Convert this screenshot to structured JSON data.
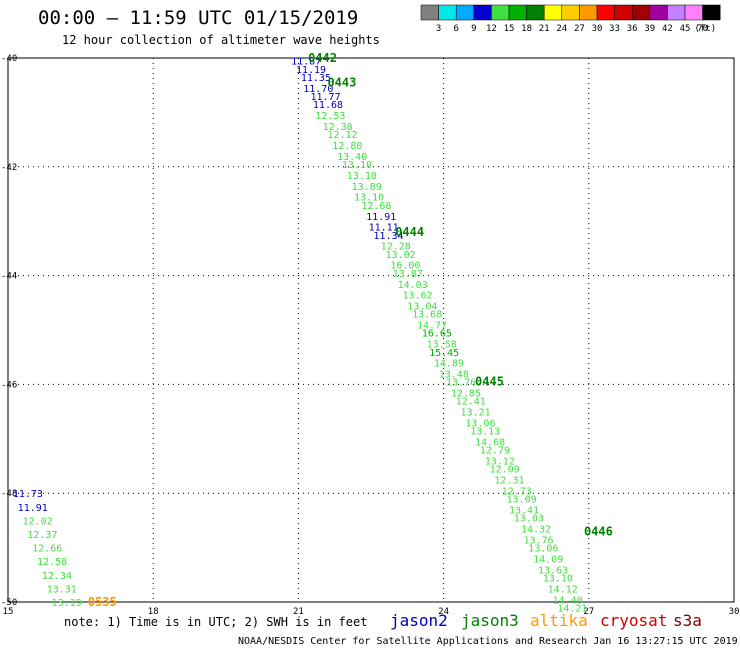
{
  "title": "00:00 – 11:59 UTC 01/15/2019",
  "subtitle": "12 hour collection of altimeter wave heights",
  "note": "note: 1) Time is in UTC; 2) SWH is in feet",
  "footer": "NOAA/NESDIS Center for Satellite Applications and Research   Jan 16 13:27:15 UTC 2019",
  "colorbar": {
    "colors": [
      "#808080",
      "#00e8e8",
      "#00aaff",
      "#0000d0",
      "#40e040",
      "#00b000",
      "#008000",
      "#ffff00",
      "#ffcc00",
      "#ff9900",
      "#ff0000",
      "#d00000",
      "#a00000",
      "#a000a0",
      "#c080ff",
      "#ff80ff",
      "#000000"
    ],
    "labels": [
      "3",
      "6",
      "9",
      "12",
      "15",
      "18",
      "21",
      "24",
      "27",
      "30",
      "33",
      "36",
      "39",
      "42",
      "45",
      "70"
    ],
    "unit": "(ft)"
  },
  "satellites": [
    {
      "name": "jason2",
      "color": "#0000c0"
    },
    {
      "name": "jason3",
      "color": "#008000"
    },
    {
      "name": "altika",
      "color": "#ff9900"
    },
    {
      "name": "cryosat",
      "color": "#d00000"
    },
    {
      "name": "s3a",
      "color": "#800000"
    }
  ],
  "chart_data": {
    "type": "scatter",
    "title": "00:00 – 11:59 UTC 01/15/2019",
    "subtitle": "12 hour collection of altimeter wave heights",
    "x_ticks": [
      "15",
      "18",
      "21",
      "24",
      "27",
      "30"
    ],
    "y_ticks": [
      "-40",
      "-42",
      "-44",
      "-46",
      "-48",
      "-50"
    ],
    "xlim": [
      15,
      30
    ],
    "ylim": [
      -50,
      -40
    ],
    "grid": true,
    "points": [
      {
        "x": 20.85,
        "y": -40.05,
        "v": "11.87",
        "c": "#0000c0"
      },
      {
        "x": 20.95,
        "y": -40.2,
        "v": "11.19",
        "c": "#0000c0"
      },
      {
        "x": 21.05,
        "y": -40.35,
        "v": "11.35",
        "c": "#0000c0"
      },
      {
        "x": 21.1,
        "y": -40.55,
        "v": "11.70",
        "c": "#0000c0"
      },
      {
        "x": 21.25,
        "y": -40.7,
        "v": "11.77",
        "c": "#0000c0"
      },
      {
        "x": 21.3,
        "y": -40.85,
        "v": "11.68",
        "c": "#0000c0"
      },
      {
        "x": 21.35,
        "y": -41.05,
        "v": "12.53",
        "c": "#40e040"
      },
      {
        "x": 21.5,
        "y": -41.25,
        "v": "12.38",
        "c": "#40e040"
      },
      {
        "x": 21.6,
        "y": -41.4,
        "v": "12.12",
        "c": "#40e040"
      },
      {
        "x": 21.7,
        "y": -41.6,
        "v": "12.80",
        "c": "#40e040"
      },
      {
        "x": 21.8,
        "y": -41.8,
        "v": "13.40",
        "c": "#40e040"
      },
      {
        "x": 21.9,
        "y": -41.95,
        "v": "13.10",
        "c": "#40e040"
      },
      {
        "x": 22.0,
        "y": -42.15,
        "v": "13.10",
        "c": "#40e040"
      },
      {
        "x": 22.1,
        "y": -42.35,
        "v": "13.89",
        "c": "#40e040"
      },
      {
        "x": 22.15,
        "y": -42.55,
        "v": "13.10",
        "c": "#40e040"
      },
      {
        "x": 22.3,
        "y": -42.7,
        "v": "12.68",
        "c": "#40e040"
      },
      {
        "x": 22.4,
        "y": -42.9,
        "v": "11.91",
        "c": "#0000c0"
      },
      {
        "x": 22.45,
        "y": -43.1,
        "v": "11.11",
        "c": "#0000c0"
      },
      {
        "x": 22.55,
        "y": -43.25,
        "v": "11.34",
        "c": "#0000c0"
      },
      {
        "x": 22.7,
        "y": -43.45,
        "v": "12.28",
        "c": "#40e040"
      },
      {
        "x": 22.8,
        "y": -43.6,
        "v": "13.02",
        "c": "#40e040"
      },
      {
        "x": 22.9,
        "y": -43.8,
        "v": "16.00",
        "c": "#40e040"
      },
      {
        "x": 22.95,
        "y": -43.95,
        "v": "13.87",
        "c": "#40e040"
      },
      {
        "x": 23.05,
        "y": -44.15,
        "v": "14.03",
        "c": "#40e040"
      },
      {
        "x": 23.15,
        "y": -44.35,
        "v": "13.62",
        "c": "#40e040"
      },
      {
        "x": 23.25,
        "y": -44.55,
        "v": "13.04",
        "c": "#40e040"
      },
      {
        "x": 23.35,
        "y": -44.7,
        "v": "13.68",
        "c": "#40e040"
      },
      {
        "x": 23.45,
        "y": -44.9,
        "v": "14.77",
        "c": "#40e040"
      },
      {
        "x": 23.55,
        "y": -45.05,
        "v": "16.65",
        "c": "#00b000"
      },
      {
        "x": 23.65,
        "y": -45.25,
        "v": "13.58",
        "c": "#40e040"
      },
      {
        "x": 23.7,
        "y": -45.4,
        "v": "15.45",
        "c": "#00b000"
      },
      {
        "x": 23.8,
        "y": -45.6,
        "v": "14.89",
        "c": "#40e040"
      },
      {
        "x": 23.9,
        "y": -45.8,
        "v": "13.48",
        "c": "#40e040"
      },
      {
        "x": 24.05,
        "y": -45.95,
        "v": "13.76",
        "c": "#40e040"
      },
      {
        "x": 24.15,
        "y": -46.15,
        "v": "12.85",
        "c": "#40e040"
      },
      {
        "x": 24.25,
        "y": -46.3,
        "v": "12.41",
        "c": "#40e040"
      },
      {
        "x": 24.35,
        "y": -46.5,
        "v": "13.21",
        "c": "#40e040"
      },
      {
        "x": 24.45,
        "y": -46.7,
        "v": "13.06",
        "c": "#40e040"
      },
      {
        "x": 24.55,
        "y": -46.85,
        "v": "13.13",
        "c": "#40e040"
      },
      {
        "x": 24.65,
        "y": -47.05,
        "v": "14.68",
        "c": "#40e040"
      },
      {
        "x": 24.75,
        "y": -47.2,
        "v": "12.79",
        "c": "#40e040"
      },
      {
        "x": 24.85,
        "y": -47.4,
        "v": "13.12",
        "c": "#40e040"
      },
      {
        "x": 24.95,
        "y": -47.55,
        "v": "12.09",
        "c": "#40e040"
      },
      {
        "x": 25.05,
        "y": -47.75,
        "v": "12.31",
        "c": "#40e040"
      },
      {
        "x": 25.2,
        "y": -47.95,
        "v": "12.73",
        "c": "#40e040"
      },
      {
        "x": 25.3,
        "y": -48.1,
        "v": "13.09",
        "c": "#40e040"
      },
      {
        "x": 25.35,
        "y": -48.3,
        "v": "13.41",
        "c": "#40e040"
      },
      {
        "x": 25.45,
        "y": -48.45,
        "v": "13.03",
        "c": "#40e040"
      },
      {
        "x": 25.6,
        "y": -48.65,
        "v": "14.32",
        "c": "#40e040"
      },
      {
        "x": 25.65,
        "y": -48.85,
        "v": "13.76",
        "c": "#40e040"
      },
      {
        "x": 25.75,
        "y": -49.0,
        "v": "13.06",
        "c": "#40e040"
      },
      {
        "x": 25.85,
        "y": -49.2,
        "v": "14.09",
        "c": "#40e040"
      },
      {
        "x": 25.95,
        "y": -49.4,
        "v": "13.63",
        "c": "#40e040"
      },
      {
        "x": 26.05,
        "y": -49.55,
        "v": "13.10",
        "c": "#40e040"
      },
      {
        "x": 26.15,
        "y": -49.75,
        "v": "14.12",
        "c": "#40e040"
      },
      {
        "x": 26.25,
        "y": -49.95,
        "v": "14.40",
        "c": "#40e040"
      },
      {
        "x": 26.35,
        "y": -50.1,
        "v": "14.21",
        "c": "#40e040"
      },
      {
        "x": 15.1,
        "y": -48.0,
        "v": "11.73",
        "c": "#0000c0"
      },
      {
        "x": 15.2,
        "y": -48.25,
        "v": "11.91",
        "c": "#0000c0"
      },
      {
        "x": 15.3,
        "y": -48.5,
        "v": "12.02",
        "c": "#40e040"
      },
      {
        "x": 15.4,
        "y": -48.75,
        "v": "12.37",
        "c": "#40e040"
      },
      {
        "x": 15.5,
        "y": -49.0,
        "v": "12.66",
        "c": "#40e040"
      },
      {
        "x": 15.6,
        "y": -49.25,
        "v": "12.58",
        "c": "#40e040"
      },
      {
        "x": 15.7,
        "y": -49.5,
        "v": "12.34",
        "c": "#40e040"
      },
      {
        "x": 15.8,
        "y": -49.75,
        "v": "13.31",
        "c": "#40e040"
      },
      {
        "x": 15.9,
        "y": -50.0,
        "v": "13.19",
        "c": "#40e040"
      }
    ],
    "time_labels": [
      {
        "x": 21.2,
        "y": -40.0,
        "t": "0442",
        "c": "#008000"
      },
      {
        "x": 21.6,
        "y": -40.45,
        "t": "0443",
        "c": "#008000"
      },
      {
        "x": 23.0,
        "y": -43.2,
        "t": "0444",
        "c": "#008000"
      },
      {
        "x": 24.65,
        "y": -45.95,
        "t": "0445",
        "c": "#008000"
      },
      {
        "x": 26.9,
        "y": -48.7,
        "t": "0446",
        "c": "#008000"
      },
      {
        "x": 16.65,
        "y": -50.0,
        "t": "0535",
        "c": "#ff9900"
      }
    ]
  }
}
